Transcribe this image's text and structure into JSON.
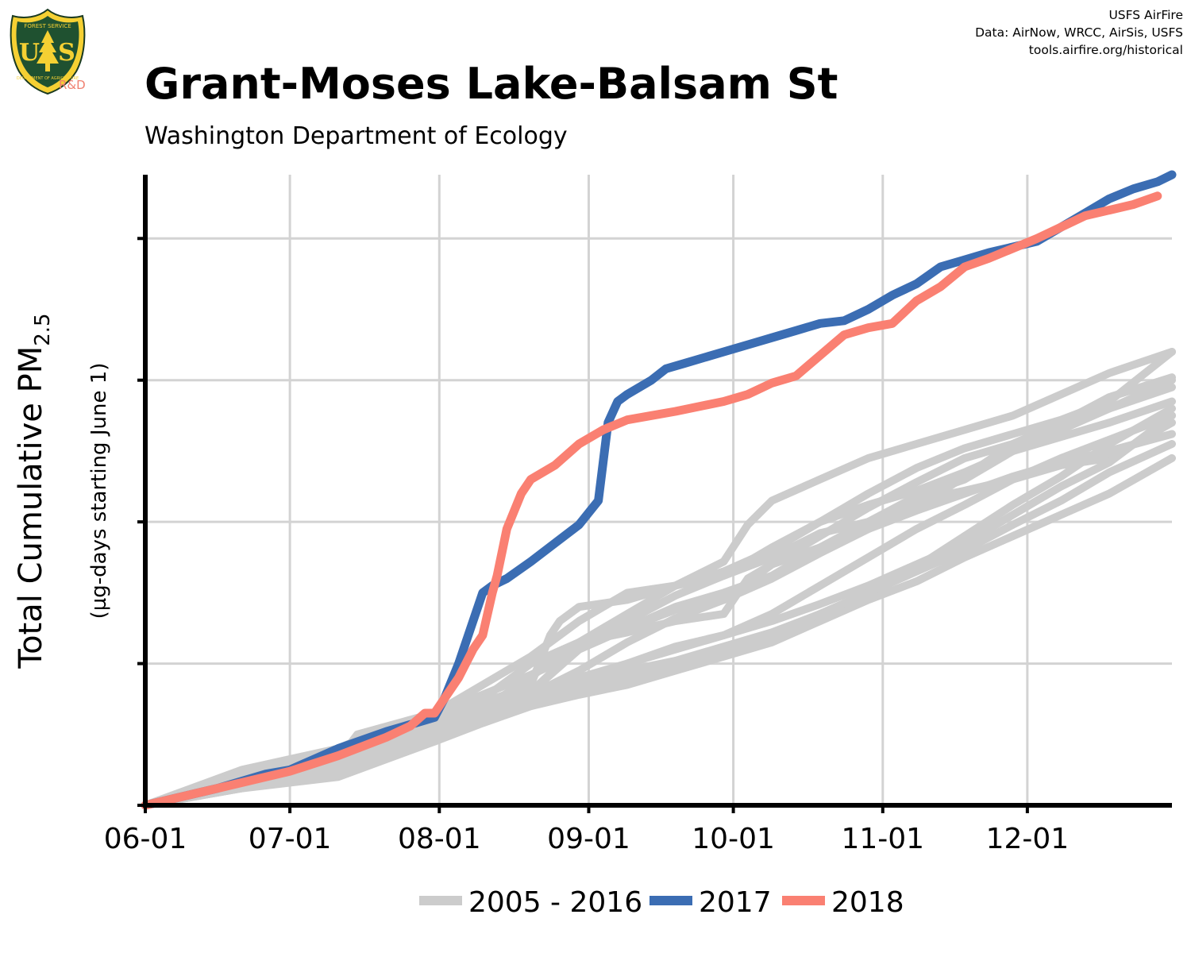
{
  "header": {
    "title": "Grant-Moses Lake-Balsam St",
    "subtitle": "Washington Department of Ecology",
    "credits": [
      "USFS AirFire",
      "Data: AirNow, WRCC, AirSis, USFS",
      "tools.airfire.org/historical"
    ],
    "logo": {
      "icon": "usfs-shield-logo",
      "letters": [
        "U",
        "S"
      ],
      "ring_top": "FOREST SERVICE",
      "ring_bottom": "DEPARTMENT OF AGRICULTURE",
      "suffix": "R&D"
    }
  },
  "chart_data": {
    "type": "line",
    "ylabel_main": "Total Cumulative PM",
    "ylabel_sub": "2.5",
    "ylabel2": "(µg-days starting June 1)",
    "x_tick_labels": [
      "06-01",
      "07-01",
      "08-01",
      "09-01",
      "10-01",
      "11-01",
      "12-01"
    ],
    "x_ticks": [
      0,
      30,
      61,
      92,
      122,
      153,
      183
    ],
    "xlim": [
      0,
      213
    ],
    "ylim": [
      0,
      4.45
    ],
    "y_ticks": [
      1,
      2,
      3,
      4
    ],
    "y_tick_labels_shown": false,
    "grid": true,
    "legend_position": "bottom",
    "legend": [
      {
        "label": "2005 - 2016",
        "color": "#cccccc"
      },
      {
        "label": "2017",
        "color": "#3b6db3"
      },
      {
        "label": "2018",
        "color": "#fa8072"
      }
    ],
    "series": [
      {
        "name": "2017",
        "color": "#3b6db3",
        "x": [
          0,
          15,
          25,
          30,
          40,
          50,
          55,
          60,
          62,
          65,
          70,
          72,
          75,
          80,
          85,
          90,
          94,
          96,
          98,
          100,
          105,
          108,
          112,
          120,
          125,
          130,
          135,
          140,
          145,
          150,
          155,
          160,
          165,
          170,
          175,
          180,
          185,
          190,
          195,
          200,
          205,
          210,
          213
        ],
        "y": [
          0,
          0.12,
          0.22,
          0.25,
          0.4,
          0.52,
          0.57,
          0.62,
          0.75,
          1.0,
          1.5,
          1.55,
          1.6,
          1.72,
          1.85,
          1.98,
          2.15,
          2.7,
          2.85,
          2.9,
          3.0,
          3.08,
          3.12,
          3.2,
          3.25,
          3.3,
          3.35,
          3.4,
          3.42,
          3.5,
          3.6,
          3.68,
          3.8,
          3.85,
          3.9,
          3.94,
          3.98,
          4.08,
          4.18,
          4.28,
          4.35,
          4.4,
          4.45
        ]
      },
      {
        "name": "2018",
        "color": "#fa8072",
        "x": [
          0,
          15,
          25,
          30,
          40,
          50,
          55,
          58,
          60,
          65,
          68,
          70,
          72,
          73,
          75,
          78,
          80,
          85,
          90,
          95,
          100,
          105,
          110,
          120,
          125,
          130,
          135,
          145,
          150,
          155,
          160,
          165,
          170,
          175,
          180,
          185,
          190,
          195,
          200,
          205,
          210
        ],
        "y": [
          0,
          0.12,
          0.2,
          0.24,
          0.35,
          0.48,
          0.56,
          0.65,
          0.65,
          0.9,
          1.1,
          1.2,
          1.5,
          1.62,
          1.95,
          2.2,
          2.3,
          2.4,
          2.55,
          2.65,
          2.72,
          2.75,
          2.78,
          2.85,
          2.9,
          2.98,
          3.03,
          3.32,
          3.37,
          3.4,
          3.56,
          3.66,
          3.8,
          3.86,
          3.93,
          4.0,
          4.08,
          4.16,
          4.2,
          4.24,
          4.3
        ]
      },
      {
        "name": "2005 - 2016",
        "color": "#cccccc",
        "x": [
          0,
          20,
          40,
          44,
          60,
          80,
          90,
          100,
          110,
          120,
          130,
          140,
          150,
          160,
          170,
          180,
          190,
          200,
          213
        ],
        "y": [
          0,
          0.12,
          0.32,
          0.5,
          0.65,
          1.05,
          1.3,
          1.5,
          1.55,
          1.62,
          1.75,
          1.92,
          2.0,
          2.15,
          2.22,
          2.3,
          2.4,
          2.45,
          2.7
        ]
      },
      {
        "name": "2005 - 2016",
        "color": "#cccccc",
        "x": [
          0,
          20,
          40,
          50,
          60,
          70,
          80,
          85,
          90,
          100,
          110,
          120,
          130,
          140,
          150,
          160,
          170,
          180,
          190,
          200,
          213
        ],
        "y": [
          0,
          0.25,
          0.4,
          0.55,
          0.65,
          0.78,
          0.92,
          1.0,
          1.1,
          1.25,
          1.4,
          1.5,
          1.62,
          1.82,
          2.0,
          2.18,
          2.3,
          2.5,
          2.65,
          2.8,
          2.95
        ]
      },
      {
        "name": "2005 - 2016",
        "color": "#cccccc",
        "x": [
          0,
          20,
          40,
          42,
          44,
          60,
          70,
          80,
          84,
          86,
          90,
          100,
          110,
          120,
          130,
          140,
          150,
          160,
          170,
          180,
          190,
          200,
          213
        ],
        "y": [
          0,
          0.22,
          0.35,
          0.35,
          0.4,
          0.6,
          0.72,
          0.85,
          1.2,
          1.3,
          1.4,
          1.45,
          1.55,
          1.65,
          1.8,
          2.0,
          2.12,
          2.22,
          2.35,
          2.5,
          2.6,
          2.7,
          2.85
        ]
      },
      {
        "name": "2005 - 2016",
        "color": "#cccccc",
        "x": [
          0,
          20,
          40,
          45,
          60,
          70,
          80,
          90,
          100,
          110,
          120,
          130,
          140,
          150,
          160,
          170,
          180,
          190,
          200,
          213
        ],
        "y": [
          0,
          0.18,
          0.38,
          0.45,
          0.55,
          0.66,
          0.8,
          0.9,
          1.0,
          1.1,
          1.2,
          1.3,
          1.42,
          1.55,
          1.7,
          1.85,
          2.05,
          2.25,
          2.42,
          2.75
        ]
      },
      {
        "name": "2005 - 2016",
        "color": "#cccccc",
        "x": [
          0,
          20,
          40,
          60,
          70,
          80,
          90,
          100,
          110,
          120,
          130,
          140,
          150,
          160,
          170,
          180,
          190,
          200,
          213
        ],
        "y": [
          0,
          0.15,
          0.3,
          0.5,
          0.6,
          0.7,
          0.78,
          0.85,
          0.95,
          1.05,
          1.15,
          1.3,
          1.45,
          1.58,
          1.75,
          1.9,
          2.05,
          2.2,
          2.45
        ]
      },
      {
        "name": "2005 - 2016",
        "color": "#cccccc",
        "x": [
          0,
          20,
          40,
          60,
          70,
          80,
          85,
          90,
          100,
          110,
          120,
          125,
          130,
          140,
          150,
          160,
          170,
          180,
          190,
          200,
          213
        ],
        "y": [
          0,
          0.12,
          0.25,
          0.5,
          0.68,
          0.9,
          1.05,
          1.15,
          1.22,
          1.3,
          1.35,
          1.6,
          1.7,
          1.82,
          1.95,
          2.08,
          2.2,
          2.32,
          2.42,
          2.5,
          2.62
        ]
      },
      {
        "name": "2005 - 2016",
        "color": "#cccccc",
        "x": [
          0,
          20,
          40,
          60,
          70,
          80,
          90,
          100,
          110,
          120,
          130,
          140,
          150,
          160,
          170,
          180,
          190,
          200,
          213
        ],
        "y": [
          0,
          0.14,
          0.28,
          0.45,
          0.58,
          0.7,
          0.8,
          0.9,
          1.0,
          1.08,
          1.2,
          1.35,
          1.5,
          1.65,
          1.8,
          1.98,
          2.15,
          2.35,
          2.55
        ]
      },
      {
        "name": "2005 - 2016",
        "color": "#cccccc",
        "x": [
          0,
          20,
          40,
          60,
          70,
          80,
          90,
          100,
          110,
          120,
          125,
          130,
          140,
          150,
          160,
          170,
          180,
          190,
          200,
          213
        ],
        "y": [
          0,
          0.2,
          0.35,
          0.5,
          0.75,
          1.0,
          1.15,
          1.35,
          1.55,
          1.72,
          1.98,
          2.15,
          2.3,
          2.45,
          2.55,
          2.65,
          2.75,
          2.9,
          3.05,
          3.2
        ]
      },
      {
        "name": "2005 - 2016",
        "color": "#cccccc",
        "x": [
          0,
          20,
          40,
          60,
          70,
          80,
          90,
          100,
          110,
          120,
          130,
          140,
          150,
          160,
          170,
          180,
          190,
          200,
          213
        ],
        "y": [
          0,
          0.12,
          0.2,
          0.45,
          0.6,
          0.8,
          1.1,
          1.25,
          1.38,
          1.45,
          1.6,
          1.78,
          1.95,
          2.1,
          2.32,
          2.55,
          2.7,
          2.88,
          3.02
        ]
      },
      {
        "name": "2005 - 2016",
        "color": "#cccccc",
        "x": [
          0,
          20,
          40,
          60,
          70,
          80,
          90,
          100,
          110,
          120,
          130,
          140,
          150,
          160,
          170,
          180,
          190,
          200,
          213
        ],
        "y": [
          0,
          0.22,
          0.38,
          0.55,
          0.68,
          0.8,
          1.12,
          1.3,
          1.48,
          1.62,
          1.82,
          2.0,
          2.2,
          2.38,
          2.52,
          2.62,
          2.72,
          2.85,
          3.2
        ]
      },
      {
        "name": "2005 - 2016",
        "color": "#cccccc",
        "x": [
          0,
          20,
          40,
          60,
          70,
          80,
          90,
          100,
          110,
          120,
          130,
          140,
          150,
          160,
          170,
          180,
          190,
          200,
          213
        ],
        "y": [
          0,
          0.18,
          0.3,
          0.5,
          0.62,
          0.78,
          0.95,
          1.15,
          1.32,
          1.45,
          1.7,
          1.9,
          2.1,
          2.28,
          2.45,
          2.55,
          2.68,
          2.8,
          3.0
        ]
      },
      {
        "name": "2005 - 2016",
        "color": "#cccccc",
        "x": [
          0,
          20,
          40,
          60,
          70,
          80,
          90,
          100,
          110,
          120,
          130,
          140,
          150,
          160,
          170,
          180,
          190,
          200,
          213
        ],
        "y": [
          0,
          0.14,
          0.25,
          0.48,
          0.6,
          0.72,
          0.86,
          1.0,
          1.12,
          1.2,
          1.35,
          1.55,
          1.75,
          1.95,
          2.12,
          2.3,
          2.45,
          2.58,
          2.75
        ]
      },
      {
        "name": "2005 - 2016",
        "color": "#cccccc",
        "x": [
          0,
          20,
          40,
          60,
          70,
          80,
          90,
          100,
          110,
          120,
          130,
          140,
          150,
          160,
          170,
          180,
          190,
          200,
          213
        ],
        "y": [
          0,
          0.16,
          0.3,
          0.52,
          0.65,
          0.75,
          0.85,
          0.95,
          1.02,
          1.12,
          1.22,
          1.35,
          1.5,
          1.68,
          1.9,
          2.12,
          2.32,
          2.55,
          2.8
        ]
      }
    ]
  }
}
